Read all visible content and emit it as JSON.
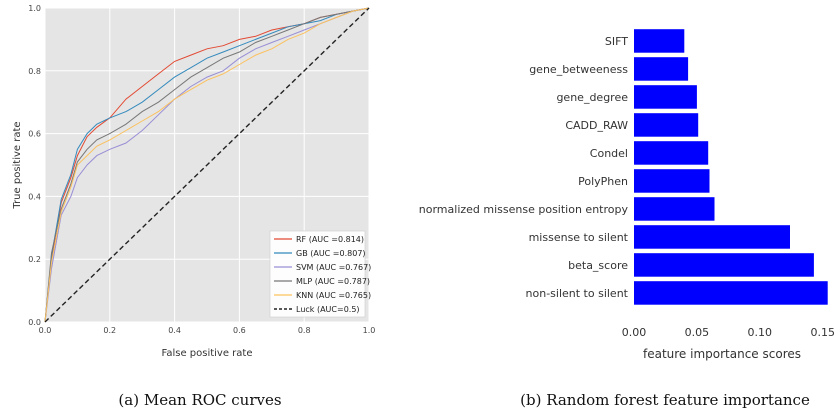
{
  "chart_data": [
    {
      "type": "line",
      "xlabel": "False positive rate",
      "ylabel": "True positive rate",
      "xlim": [
        0,
        1
      ],
      "ylim": [
        0,
        1
      ],
      "xticks": [
        "0.0",
        "0.2",
        "0.4",
        "0.6",
        "0.8",
        "1.0"
      ],
      "yticks": [
        "0.0",
        "0.2",
        "0.4",
        "0.6",
        "0.8",
        "1.0"
      ],
      "grid": true,
      "legend_position": "bottom-right",
      "series": [
        {
          "name": "RF (AUC =0.814)",
          "color": "#e24a33",
          "dash": "",
          "x": [
            0,
            0.02,
            0.05,
            0.08,
            0.1,
            0.13,
            0.16,
            0.2,
            0.25,
            0.3,
            0.35,
            0.4,
            0.45,
            0.5,
            0.55,
            0.6,
            0.65,
            0.7,
            0.75,
            0.8,
            0.85,
            0.9,
            0.95,
            1.0
          ],
          "y": [
            0,
            0.2,
            0.38,
            0.46,
            0.53,
            0.59,
            0.62,
            0.65,
            0.71,
            0.75,
            0.79,
            0.83,
            0.85,
            0.87,
            0.88,
            0.9,
            0.91,
            0.93,
            0.94,
            0.95,
            0.97,
            0.98,
            0.99,
            1.0
          ]
        },
        {
          "name": "GB (AUC =0.807)",
          "color": "#348abd",
          "dash": "",
          "x": [
            0,
            0.02,
            0.05,
            0.08,
            0.1,
            0.13,
            0.16,
            0.2,
            0.25,
            0.3,
            0.35,
            0.4,
            0.45,
            0.5,
            0.55,
            0.6,
            0.65,
            0.7,
            0.75,
            0.8,
            0.85,
            0.9,
            0.95,
            1.0
          ],
          "y": [
            0,
            0.21,
            0.39,
            0.47,
            0.55,
            0.6,
            0.63,
            0.65,
            0.67,
            0.7,
            0.74,
            0.78,
            0.81,
            0.84,
            0.86,
            0.88,
            0.9,
            0.92,
            0.94,
            0.95,
            0.96,
            0.98,
            0.99,
            1.0
          ]
        },
        {
          "name": "SVM (AUC =0.767)",
          "color": "#988ed5",
          "dash": "",
          "x": [
            0,
            0.02,
            0.05,
            0.08,
            0.1,
            0.13,
            0.16,
            0.2,
            0.25,
            0.3,
            0.35,
            0.4,
            0.45,
            0.5,
            0.55,
            0.6,
            0.65,
            0.7,
            0.75,
            0.8,
            0.85,
            0.9,
            0.95,
            1.0
          ],
          "y": [
            0,
            0.17,
            0.34,
            0.4,
            0.46,
            0.5,
            0.53,
            0.55,
            0.57,
            0.61,
            0.66,
            0.71,
            0.75,
            0.78,
            0.8,
            0.84,
            0.87,
            0.89,
            0.91,
            0.93,
            0.95,
            0.97,
            0.99,
            1.0
          ]
        },
        {
          "name": "MLP (AUC =0.787)",
          "color": "#777777",
          "dash": "",
          "x": [
            0,
            0.02,
            0.05,
            0.08,
            0.1,
            0.13,
            0.16,
            0.2,
            0.25,
            0.3,
            0.35,
            0.4,
            0.45,
            0.5,
            0.55,
            0.6,
            0.65,
            0.7,
            0.75,
            0.8,
            0.85,
            0.9,
            0.95,
            1.0
          ],
          "y": [
            0,
            0.22,
            0.36,
            0.44,
            0.51,
            0.55,
            0.58,
            0.6,
            0.63,
            0.67,
            0.7,
            0.74,
            0.78,
            0.81,
            0.84,
            0.86,
            0.89,
            0.91,
            0.93,
            0.95,
            0.97,
            0.98,
            0.99,
            1.0
          ]
        },
        {
          "name": "KNN (AUC =0.765)",
          "color": "#fbc15e",
          "dash": "",
          "x": [
            0,
            0.02,
            0.05,
            0.08,
            0.1,
            0.13,
            0.16,
            0.2,
            0.25,
            0.3,
            0.35,
            0.4,
            0.45,
            0.5,
            0.55,
            0.6,
            0.65,
            0.7,
            0.75,
            0.8,
            0.85,
            0.9,
            0.95,
            1.0
          ],
          "y": [
            0,
            0.19,
            0.35,
            0.43,
            0.5,
            0.53,
            0.56,
            0.58,
            0.61,
            0.64,
            0.67,
            0.71,
            0.74,
            0.77,
            0.79,
            0.82,
            0.85,
            0.87,
            0.9,
            0.92,
            0.95,
            0.97,
            0.99,
            1.0
          ]
        },
        {
          "name": "Luck (AUC=0.5)",
          "color": "#222222",
          "dash": "5,3",
          "x": [
            0,
            1
          ],
          "y": [
            0,
            1
          ]
        }
      ]
    },
    {
      "type": "bar",
      "orientation": "horizontal",
      "xlabel": "feature importance scores",
      "xlim": [
        0,
        0.155
      ],
      "xticks": [
        "0.00",
        "0.05",
        "0.10",
        "0.15"
      ],
      "bar_color": "#0000ff",
      "categories": [
        "SIFT",
        "gene_betweeness",
        "gene_degree",
        "CADD_RAW",
        "Condel",
        "PolyPhen",
        "normalized missense position entropy",
        "missense to silent",
        "beta_score",
        "non-silent to silent"
      ],
      "values": [
        0.04,
        0.043,
        0.05,
        0.051,
        0.059,
        0.06,
        0.064,
        0.124,
        0.143,
        0.154
      ]
    }
  ],
  "captions": {
    "a": "(a) Mean ROC curves",
    "b": "(b) Random forest feature importance"
  }
}
